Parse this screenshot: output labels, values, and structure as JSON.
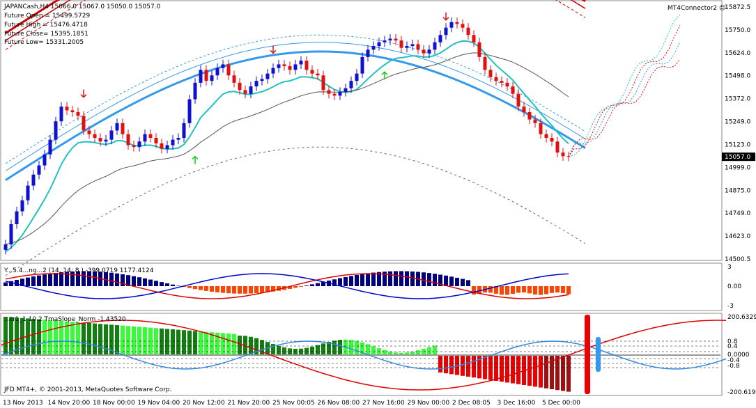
{
  "header": {
    "symbol_line": "JAPANCash,H4  15066.0 15067.0 15050.0 15057.0",
    "future_open": "Future Open = 15499.5729",
    "future_high": "Future High = 15476.4718",
    "future_close": "Future Close= 15395.1851",
    "future_low": "Future Low= 15331.2005",
    "connector": "MT4Connector2 ☺"
  },
  "footer": {
    "copyright": "JFD MT4+, © 2001-2013, MetaQuotes Software Corp."
  },
  "time_axis": [
    "13 Nov 2013",
    "14 Nov 20:00",
    "18 Nov 00:00",
    "19 Nov 04:00",
    "20 Nov 12:00",
    "21 Nov 20:00",
    "25 Nov 00:05",
    "26 Nov 08:00",
    "27 Nov 16:00",
    "29 Nov 00:00",
    "2 Dec 08:05",
    "3 Dec 16:00",
    "5 Dec 00:00"
  ],
  "colors": {
    "bull": "#1010d0",
    "bear": "#e01010",
    "tma": "#20c0c0",
    "band_red": "#cc0000",
    "band_blue": "#3399ee",
    "hist_navy": "#000080",
    "hist_orange": "#ff4400",
    "slope_green": "#108010",
    "slope_lime": "#33ff33",
    "slope_red": "#ee0000",
    "slope_maroon": "#a01010"
  },
  "chart_data": [
    {
      "type": "candlestick",
      "panel": "main",
      "ylim": [
        14500.5,
        15872.5
      ],
      "y_ticks": [
        "15872.5",
        "15750.0",
        "15624.0",
        "15498.0",
        "15372.0",
        "15249.0",
        "15123.0",
        "14999.0",
        "14875.0",
        "14749.0",
        "14623.0",
        "14500.5"
      ],
      "current_price": "15057.0",
      "close": [
        14580,
        14690,
        14760,
        14820,
        14900,
        14960,
        15010,
        15070,
        15150,
        15250,
        15330,
        15310,
        15300,
        15280,
        15200,
        15180,
        15160,
        15140,
        15150,
        15200,
        15240,
        15180,
        15120,
        15110,
        15140,
        15180,
        15160,
        15130,
        15100,
        15120,
        15150,
        15160,
        15240,
        15370,
        15460,
        15530,
        15470,
        15500,
        15540,
        15560,
        15500,
        15460,
        15420,
        15400,
        15440,
        15470,
        15480,
        15510,
        15540,
        15560,
        15550,
        15530,
        15560,
        15580,
        15530,
        15510,
        15500,
        15420,
        15400,
        15390,
        15410,
        15430,
        15470,
        15510,
        15600,
        15640,
        15660,
        15680,
        15690,
        15700,
        15690,
        15650,
        15660,
        15670,
        15640,
        15620,
        15640,
        15680,
        15720,
        15760,
        15790,
        15780,
        15760,
        15720,
        15680,
        15600,
        15530,
        15490,
        15470,
        15460,
        15440,
        15400,
        15330,
        15300,
        15260,
        15240,
        15180,
        15160,
        15140,
        15080,
        15060,
        15057
      ]
    },
    {
      "type": "histogram",
      "panel": "oscillator",
      "label": "Y...5.4...ng...2 (14, 14; 8 ) -399.0719 1177.4124",
      "ylim": [
        -3,
        3
      ],
      "y_ticks": [
        "3",
        "0.00",
        "-3"
      ]
    },
    {
      "type": "histogram",
      "panel": "slope",
      "label": "...tr1_1  10.2  TmaSlope_Norm -1.43520",
      "ylim": [
        -200.6192,
        200.6329
      ],
      "y_ticks": [
        "200.6329",
        "0.8",
        "0.4",
        "0.0000",
        "-0.4",
        "-0.8",
        "-200.6192"
      ]
    }
  ]
}
